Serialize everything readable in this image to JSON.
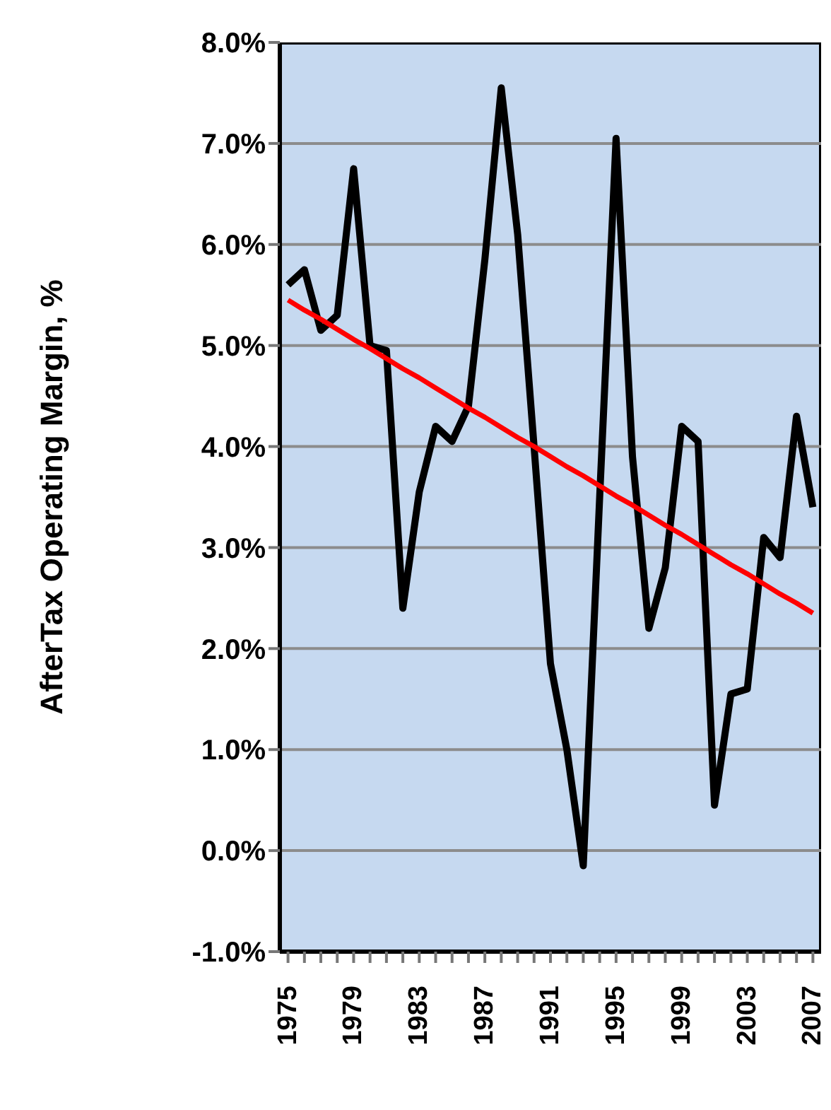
{
  "chart_data": {
    "type": "line",
    "ylabel": "AfterTax Operating Margin, %",
    "categories": [
      "1975",
      null,
      null,
      null,
      "1979",
      null,
      null,
      null,
      "1983",
      null,
      null,
      null,
      "1987",
      null,
      null,
      null,
      "1991",
      null,
      null,
      null,
      "1995",
      null,
      null,
      null,
      "1999",
      null,
      null,
      null,
      "2003",
      null,
      null,
      null,
      "2007"
    ],
    "series": [
      {
        "color": "#000000",
        "values": [
          5.6,
          5.75,
          5.15,
          5.3,
          6.75,
          5.0,
          4.95,
          2.4,
          3.55,
          4.2,
          4.05,
          4.4,
          5.85,
          7.55,
          6.1,
          4.0,
          1.85,
          1.0,
          -0.15,
          3.5,
          7.05,
          3.9,
          2.2,
          2.8,
          4.2,
          4.05,
          0.45,
          1.55,
          1.6,
          3.1,
          2.9,
          4.3,
          3.4
        ]
      },
      {
        "type": "line",
        "color": "#ff0000",
        "values": [
          5.45,
          5.35,
          5.26,
          5.16,
          5.06,
          4.97,
          4.87,
          4.77,
          4.68,
          4.58,
          4.48,
          4.38,
          4.29,
          4.19,
          4.09,
          4.0,
          3.9,
          3.8,
          3.71,
          3.61,
          3.51,
          3.42,
          3.32,
          3.22,
          3.13,
          3.03,
          2.93,
          2.83,
          2.74,
          2.64,
          2.54,
          2.45,
          2.35
        ]
      }
    ],
    "ylim": [
      -1,
      8
    ],
    "yticks": [
      {
        "value": -1,
        "label": "-1.0%"
      },
      {
        "value": 0,
        "label": "0.0%"
      },
      {
        "value": 1,
        "label": "1.0%"
      },
      {
        "value": 2,
        "label": "2.0%"
      },
      {
        "value": 3,
        "label": "3.0%"
      },
      {
        "value": 4,
        "label": "4.0%"
      },
      {
        "value": 5,
        "label": "5.0%"
      },
      {
        "value": 6,
        "label": "6.0%"
      },
      {
        "value": 7,
        "label": "7.0%"
      },
      {
        "value": 8,
        "label": "8.0%"
      }
    ],
    "grid": "y",
    "marker": "none",
    "line_style": "solid"
  }
}
